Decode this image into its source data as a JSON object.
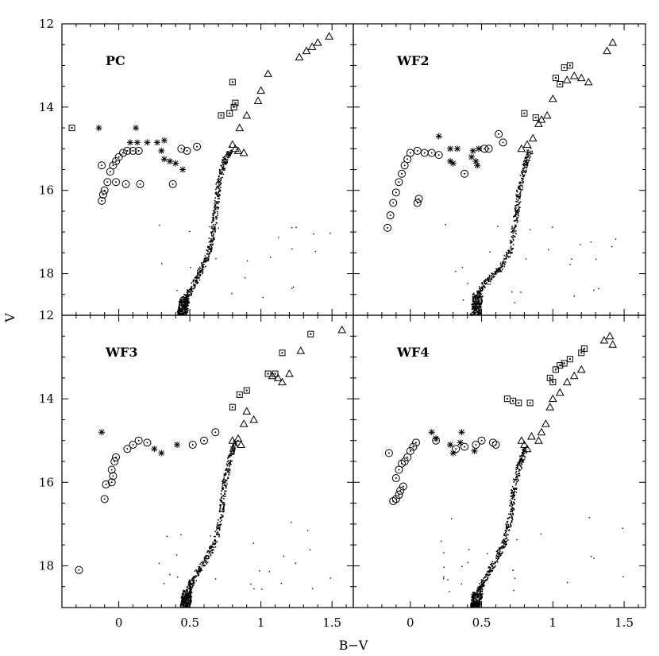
{
  "figure": {
    "xlabel": "B−V",
    "ylabel": "V"
  },
  "axes": {
    "xlim": [
      -0.4,
      1.65
    ],
    "ylim_top": [
      19.0,
      12.0
    ],
    "ylim_bottom": [
      19.0,
      12.0
    ],
    "xticks": [
      "0",
      "0.5",
      "1",
      "1.5"
    ],
    "xtick_values": [
      0,
      0.5,
      1.0,
      1.5
    ],
    "yticks_top": [
      "12",
      "14",
      "16",
      "18"
    ],
    "ytick_values_top": [
      12,
      14,
      16,
      18
    ],
    "yticks_bottom": [
      "12",
      "14",
      "16",
      "18"
    ],
    "ytick_values_bottom": [
      12,
      14,
      16,
      18
    ]
  },
  "chart_data": [
    {
      "type": "scatter",
      "panel": "PC",
      "series": [
        {
          "marker": "circle",
          "points": [
            [
              -0.12,
              16.25
            ],
            [
              -0.11,
              16.1
            ],
            [
              -0.1,
              16.0
            ],
            [
              -0.08,
              15.8
            ],
            [
              -0.06,
              15.55
            ],
            [
              -0.04,
              15.4
            ],
            [
              -0.02,
              15.3
            ],
            [
              0.0,
              15.2
            ],
            [
              0.03,
              15.1
            ],
            [
              0.06,
              15.05
            ],
            [
              0.1,
              15.05
            ],
            [
              0.14,
              15.05
            ],
            [
              -0.12,
              15.4
            ],
            [
              -0.02,
              15.8
            ],
            [
              0.05,
              15.85
            ],
            [
              0.15,
              15.85
            ],
            [
              0.38,
              15.85
            ],
            [
              0.44,
              15.0
            ],
            [
              0.48,
              15.05
            ],
            [
              0.55,
              14.95
            ]
          ]
        },
        {
          "marker": "star",
          "points": [
            [
              -0.14,
              14.5
            ],
            [
              0.12,
              14.5
            ],
            [
              0.08,
              14.85
            ],
            [
              0.13,
              14.85
            ],
            [
              0.2,
              14.85
            ],
            [
              0.27,
              14.85
            ],
            [
              0.32,
              14.8
            ],
            [
              0.3,
              15.05
            ],
            [
              0.32,
              15.25
            ],
            [
              0.36,
              15.3
            ],
            [
              0.4,
              15.35
            ],
            [
              0.45,
              15.5
            ]
          ]
        },
        {
          "marker": "square",
          "points": [
            [
              -0.33,
              14.5
            ],
            [
              0.72,
              14.2
            ],
            [
              0.78,
              14.15
            ],
            [
              0.81,
              14.0
            ],
            [
              0.82,
              13.9
            ],
            [
              0.8,
              13.4
            ]
          ]
        },
        {
          "marker": "triangle",
          "points": [
            [
              0.8,
              14.9
            ],
            [
              0.82,
              15.0
            ],
            [
              0.84,
              15.05
            ],
            [
              0.88,
              15.1
            ],
            [
              0.85,
              14.5
            ],
            [
              0.9,
              14.2
            ],
            [
              0.98,
              13.85
            ],
            [
              1.0,
              13.6
            ],
            [
              1.05,
              13.2
            ],
            [
              1.27,
              12.8
            ],
            [
              1.32,
              12.65
            ],
            [
              1.36,
              12.55
            ],
            [
              1.4,
              12.45
            ],
            [
              1.48,
              12.3
            ]
          ]
        },
        {
          "marker": "dot",
          "points": [
            [
              0.44,
              19.0
            ],
            [
              0.46,
              18.6
            ],
            [
              0.5,
              18.4
            ],
            [
              0.56,
              18.0
            ],
            [
              0.62,
              17.6
            ],
            [
              0.66,
              17.0
            ],
            [
              0.68,
              16.4
            ],
            [
              0.7,
              15.8
            ],
            [
              0.74,
              15.3
            ],
            [
              0.78,
              15.0
            ]
          ]
        }
      ]
    },
    {
      "type": "scatter",
      "panel": "WF2",
      "series": [
        {
          "marker": "circle",
          "points": [
            [
              -0.16,
              16.9
            ],
            [
              -0.14,
              16.6
            ],
            [
              -0.12,
              16.3
            ],
            [
              -0.1,
              16.05
            ],
            [
              -0.08,
              15.8
            ],
            [
              -0.06,
              15.6
            ],
            [
              -0.04,
              15.4
            ],
            [
              -0.02,
              15.25
            ],
            [
              0.0,
              15.1
            ],
            [
              0.05,
              15.05
            ],
            [
              0.1,
              15.1
            ],
            [
              0.15,
              15.1
            ],
            [
              0.2,
              15.15
            ],
            [
              0.06,
              16.2
            ],
            [
              0.05,
              16.3
            ],
            [
              0.38,
              15.6
            ],
            [
              0.52,
              15.0
            ],
            [
              0.55,
              15.0
            ],
            [
              0.62,
              14.65
            ],
            [
              0.65,
              14.85
            ]
          ]
        },
        {
          "marker": "star",
          "points": [
            [
              0.2,
              14.7
            ],
            [
              0.28,
              15.0
            ],
            [
              0.33,
              15.0
            ],
            [
              0.28,
              15.3
            ],
            [
              0.3,
              15.35
            ],
            [
              0.43,
              15.2
            ],
            [
              0.46,
              15.3
            ],
            [
              0.47,
              15.4
            ],
            [
              0.44,
              15.05
            ],
            [
              0.48,
              15.0
            ]
          ]
        },
        {
          "marker": "square",
          "points": [
            [
              0.8,
              14.15
            ],
            [
              0.88,
              14.25
            ],
            [
              1.02,
              13.3
            ],
            [
              1.08,
              13.05
            ],
            [
              1.12,
              13.0
            ],
            [
              1.05,
              13.45
            ]
          ]
        },
        {
          "marker": "triangle",
          "points": [
            [
              0.78,
              15.0
            ],
            [
              0.82,
              14.9
            ],
            [
              0.86,
              14.75
            ],
            [
              0.9,
              14.4
            ],
            [
              0.92,
              14.3
            ],
            [
              0.96,
              14.2
            ],
            [
              1.0,
              13.8
            ],
            [
              1.1,
              13.35
            ],
            [
              1.15,
              13.25
            ],
            [
              1.2,
              13.3
            ],
            [
              1.25,
              13.4
            ],
            [
              1.38,
              12.65
            ],
            [
              1.42,
              12.45
            ]
          ]
        },
        {
          "marker": "dot",
          "points": [
            [
              0.45,
              19.0
            ],
            [
              0.47,
              18.5
            ],
            [
              0.52,
              18.2
            ],
            [
              0.62,
              17.9
            ],
            [
              0.7,
              17.4
            ],
            [
              0.74,
              16.6
            ],
            [
              0.76,
              16.0
            ],
            [
              0.8,
              15.4
            ],
            [
              0.84,
              15.0
            ]
          ]
        }
      ]
    },
    {
      "type": "scatter",
      "panel": "WF3",
      "series": [
        {
          "marker": "circle",
          "points": [
            [
              -0.28,
              18.1
            ],
            [
              -0.1,
              16.4
            ],
            [
              -0.09,
              16.05
            ],
            [
              -0.05,
              16.0
            ],
            [
              -0.04,
              15.85
            ],
            [
              -0.03,
              15.5
            ],
            [
              -0.02,
              15.4
            ],
            [
              -0.05,
              15.7
            ],
            [
              0.06,
              15.2
            ],
            [
              0.1,
              15.1
            ],
            [
              0.14,
              15.0
            ],
            [
              0.2,
              15.05
            ],
            [
              0.52,
              15.1
            ],
            [
              0.6,
              15.0
            ],
            [
              0.68,
              14.8
            ]
          ]
        },
        {
          "marker": "star",
          "points": [
            [
              -0.12,
              14.8
            ],
            [
              0.25,
              15.2
            ],
            [
              0.3,
              15.3
            ],
            [
              0.41,
              15.1
            ]
          ]
        },
        {
          "marker": "square",
          "points": [
            [
              0.8,
              14.2
            ],
            [
              0.85,
              13.9
            ],
            [
              0.9,
              13.8
            ],
            [
              1.05,
              13.4
            ],
            [
              1.1,
              13.4
            ],
            [
              1.15,
              12.9
            ],
            [
              1.35,
              12.45
            ]
          ]
        },
        {
          "marker": "triangle",
          "points": [
            [
              0.8,
              15.0
            ],
            [
              0.84,
              14.95
            ],
            [
              0.86,
              15.1
            ],
            [
              0.88,
              14.6
            ],
            [
              0.9,
              14.3
            ],
            [
              0.95,
              14.5
            ],
            [
              1.08,
              13.45
            ],
            [
              1.12,
              13.5
            ],
            [
              1.15,
              13.6
            ],
            [
              1.2,
              13.4
            ],
            [
              1.28,
              12.85
            ],
            [
              1.57,
              12.35
            ]
          ]
        },
        {
          "marker": "dot",
          "points": [
            [
              0.46,
              19.0
            ],
            [
              0.48,
              18.6
            ],
            [
              0.52,
              18.3
            ],
            [
              0.6,
              17.9
            ],
            [
              0.68,
              17.4
            ],
            [
              0.72,
              16.6
            ],
            [
              0.74,
              16.0
            ],
            [
              0.78,
              15.4
            ],
            [
              0.82,
              15.0
            ]
          ]
        }
      ]
    },
    {
      "type": "scatter",
      "panel": "WF4",
      "series": [
        {
          "marker": "circle",
          "points": [
            [
              -0.15,
              15.3
            ],
            [
              -0.12,
              16.45
            ],
            [
              -0.1,
              16.4
            ],
            [
              -0.08,
              16.3
            ],
            [
              -0.07,
              16.2
            ],
            [
              -0.05,
              16.1
            ],
            [
              -0.1,
              15.9
            ],
            [
              -0.08,
              15.7
            ],
            [
              -0.06,
              15.55
            ],
            [
              -0.04,
              15.5
            ],
            [
              -0.02,
              15.4
            ],
            [
              0.0,
              15.25
            ],
            [
              0.02,
              15.15
            ],
            [
              0.04,
              15.05
            ],
            [
              0.18,
              15.0
            ],
            [
              0.32,
              15.2
            ],
            [
              0.38,
              15.15
            ],
            [
              0.46,
              15.1
            ],
            [
              0.5,
              15.0
            ],
            [
              0.58,
              15.05
            ],
            [
              0.6,
              15.1
            ]
          ]
        },
        {
          "marker": "star",
          "points": [
            [
              0.15,
              14.8
            ],
            [
              0.18,
              14.95
            ],
            [
              0.28,
              15.1
            ],
            [
              0.3,
              15.3
            ],
            [
              0.35,
              15.05
            ],
            [
              0.36,
              14.8
            ],
            [
              0.45,
              15.25
            ]
          ]
        },
        {
          "marker": "square",
          "points": [
            [
              0.68,
              14.0
            ],
            [
              0.72,
              14.05
            ],
            [
              0.76,
              14.1
            ],
            [
              0.84,
              14.1
            ],
            [
              0.98,
              13.5
            ],
            [
              1.0,
              13.6
            ],
            [
              1.02,
              13.3
            ],
            [
              1.05,
              13.2
            ],
            [
              1.08,
              13.15
            ],
            [
              1.12,
              13.05
            ],
            [
              1.2,
              12.9
            ],
            [
              1.22,
              12.8
            ]
          ]
        },
        {
          "marker": "triangle",
          "points": [
            [
              0.78,
              15.0
            ],
            [
              0.8,
              15.1
            ],
            [
              0.82,
              15.2
            ],
            [
              0.85,
              14.9
            ],
            [
              0.9,
              15.0
            ],
            [
              0.92,
              14.8
            ],
            [
              0.95,
              14.6
            ],
            [
              0.98,
              14.2
            ],
            [
              1.0,
              14.0
            ],
            [
              1.05,
              13.85
            ],
            [
              1.1,
              13.6
            ],
            [
              1.15,
              13.45
            ],
            [
              1.2,
              13.3
            ],
            [
              1.36,
              12.6
            ],
            [
              1.4,
              12.5
            ],
            [
              1.42,
              12.7
            ]
          ]
        },
        {
          "marker": "dot",
          "points": [
            [
              0.45,
              19.0
            ],
            [
              0.47,
              18.6
            ],
            [
              0.52,
              18.3
            ],
            [
              0.6,
              17.8
            ],
            [
              0.66,
              17.4
            ],
            [
              0.7,
              16.8
            ],
            [
              0.72,
              16.2
            ],
            [
              0.76,
              15.6
            ],
            [
              0.8,
              15.2
            ]
          ]
        }
      ]
    }
  ]
}
